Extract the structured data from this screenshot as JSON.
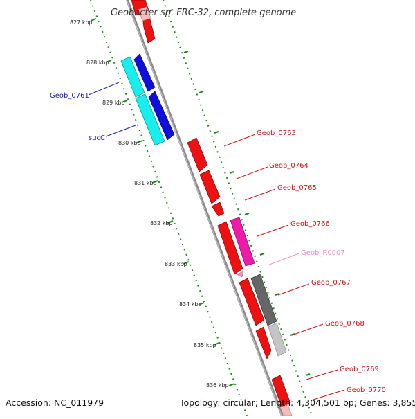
{
  "title": "Geobacter sp. FRC-32, complete genome",
  "accession": "Accession: NC_011979",
  "topology": "Topology: circular; Length: 4,304,501 bp; Genes: 3,855",
  "colors": {
    "backbone": "#8a8a8a",
    "ruler": "#1e8a1e",
    "cds": "#ee1111",
    "cyan": "#19eeee",
    "blue": "#1010dd",
    "magenta": "#ee1aa8",
    "rna": "#f58cc4",
    "dark_gray": "#666666",
    "light_gray": "#c4c4c4",
    "left_label": "#1b1bbb",
    "right_label": "#d21010"
  },
  "ticks": [
    "827 kbp",
    "828 kbp",
    "829 kbp",
    "830 kbp",
    "831 kbp",
    "832 kbp",
    "833 kbp",
    "834 kbp",
    "835 kbp",
    "836 kbp"
  ],
  "left_labels": [
    "Geob_0761",
    "sucC"
  ],
  "right_labels": [
    "Geob_0763",
    "Geob_0764",
    "Geob_0765",
    "Geob_0766",
    "Geob_R0007",
    "Geob_0767",
    "Geob_0768",
    "Geob_0769",
    "Geob_0770"
  ]
}
